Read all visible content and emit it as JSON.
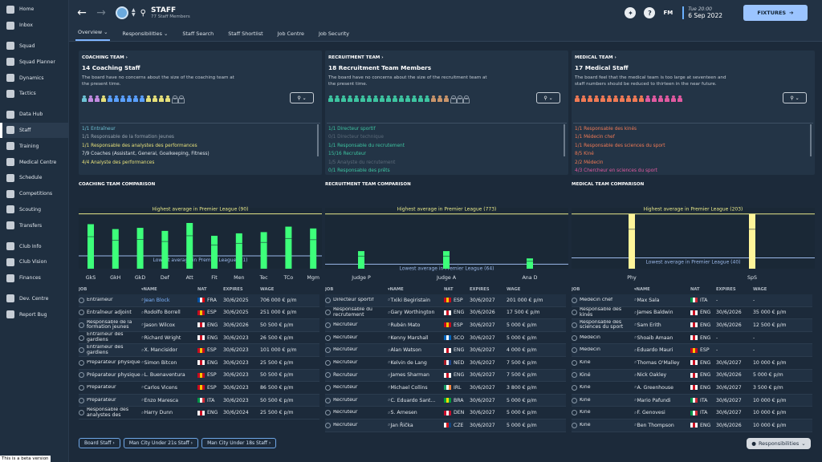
{
  "sidebar": {
    "items": [
      "Home",
      "Inbox",
      "Squad",
      "Squad Planner",
      "Dynamics",
      "Tactics",
      "Data Hub",
      "Staff",
      "Training",
      "Medical Centre",
      "Schedule",
      "Competitions",
      "Scouting",
      "Transfers",
      "Club Info",
      "Club Vision",
      "Finances",
      "Dev. Centre",
      "Report Bug"
    ],
    "icons": [
      "home-icon",
      "inbox-icon",
      "squad-icon",
      "squad-planner-icon",
      "dynamics-icon",
      "tactics-icon",
      "data-hub-icon",
      "staff-icon",
      "training-icon",
      "medical-icon",
      "schedule-icon",
      "competitions-icon",
      "scouting-icon",
      "transfers-icon",
      "club-info-icon",
      "club-vision-icon",
      "finances-icon",
      "dev-centre-icon",
      "report-bug-icon"
    ],
    "beta": "This is a beta version"
  },
  "header": {
    "title": "STAFF",
    "subtitle": "77 Staff Members",
    "fm": "FM",
    "day_time": "Tue 20:00",
    "date": "6 Sep 2022",
    "fixtures": "FIXTURES"
  },
  "tabs": [
    "Overview",
    "Responsibilities",
    "Staff Search",
    "Staff Shortlist",
    "Job Centre",
    "Job Security"
  ],
  "panels": [
    {
      "heading": "COACHING TEAM ›",
      "count": "14 Coaching Staff",
      "desc": "The board have no concerns about the size of the coaching team at the present time.",
      "figs": [
        "#6ec3d6",
        "#c28be0",
        "#c28be0",
        "#e6e07a",
        "#5aa0ff",
        "#5aa0ff",
        "#5aa0ff",
        "#5aa0ff",
        "#5aa0ff",
        "#5aa0ff",
        "#e6e07a",
        "#e6e07a",
        "#e6e07a",
        "#e6e07a",
        "empty",
        "empty"
      ],
      "lines": [
        [
          "#6ec3d6",
          "1/1 Entraîneur"
        ],
        [
          "#9aa6b2",
          "1/1 Responsable de la formation jeunes"
        ],
        [
          "#e6e07a",
          "1/1 Responsable des analystes des performances"
        ],
        [
          "#dbe2e9",
          "7/9 Coaches (Assistant, General, Goalkeeping, Fitness)"
        ],
        [
          "#e6e07a",
          "4/4 Analyste des performances"
        ]
      ]
    },
    {
      "heading": "RECRUITMENT TEAM ›",
      "count": "18 Recruitment Team Members",
      "desc": "The board have no concerns about the size of the recruitment team at the present time.",
      "figs": [
        "#3dc4a0",
        "#3dc4a0",
        "#3dc4a0",
        "#3dc4a0",
        "#3dc4a0",
        "#3dc4a0",
        "#3dc4a0",
        "#3dc4a0",
        "#3dc4a0",
        "#3dc4a0",
        "#3dc4a0",
        "#3dc4a0",
        "#3dc4a0",
        "#3dc4a0",
        "#3dc4a0",
        "#3dc4a0",
        "#c9946a",
        "#c9946a",
        "#c9946a",
        "empty",
        "empty",
        "empty"
      ],
      "lines": [
        [
          "#3dc4a0",
          "1/1 Directeur sportif"
        ],
        [
          "#5b6a79",
          "0/1 Directeur technique"
        ],
        [
          "#3dc4a0",
          "1/1 Responsable du recrutement"
        ],
        [
          "#3dc4a0",
          "15/16 Recruteur"
        ],
        [
          "#5b6a79",
          "1/5 Analyste du recrutement"
        ],
        [
          "#3dc4a0",
          "0/1 Responsable des prêts"
        ]
      ]
    },
    {
      "heading": "MEDICAL TEAM ›",
      "count": "17 Medical Staff",
      "desc": "The board feel that the medical team is too large at seventeen and staff numbers should be reduced to thirteen in the near future.",
      "figs": [
        "#f07a55",
        "#f07a55",
        "#f07a55",
        "#f07a55",
        "#f07a55",
        "#f07a55",
        "#f07a55",
        "#f07a55",
        "#f07a55",
        "#f07a55",
        "#f07a55",
        "#e05aa0",
        "#e05aa0",
        "#e05aa0",
        "#e05aa0",
        "#e05aa0",
        "#e05aa0"
      ],
      "lines": [
        [
          "#f07a55",
          "1/1 Responsable des kinés"
        ],
        [
          "#f07a55",
          "1/1 Médecin chef"
        ],
        [
          "#f07a55",
          "1/1 Responsable des sciences du sport"
        ],
        [
          "#f07a55",
          "8/5 Kiné"
        ],
        [
          "#f07a55",
          "2/2 Médecin"
        ],
        [
          "#e05aa0",
          "4/3 Chercheur en sciences du sport"
        ]
      ]
    }
  ],
  "sections": [
    "COACHING TEAM COMPARISON",
    "RECRUITMENT TEAM COMPARISON",
    "MEDICAL TEAM COMPARISON"
  ],
  "chart_data": [
    {
      "type": "bar",
      "categories": [
        "GkS",
        "GkH",
        "GkD",
        "Def",
        "Att",
        "Fit",
        "Men",
        "Tec",
        "TCo",
        "Mgm"
      ],
      "values": [
        73,
        65,
        67,
        62,
        75,
        54,
        58,
        60,
        69,
        66
      ],
      "highest_label": "Highest average in Premier League (90)",
      "highest": 90,
      "lowest_label": "Lowest average in Premier League (21)",
      "lowest": 21,
      "ylim": [
        0,
        100
      ]
    },
    {
      "type": "bar",
      "categories": [
        "Judge P",
        "Judge A",
        "Ana D"
      ],
      "values": [
        248,
        248,
        145
      ],
      "highest_label": "Highest average in Premier League (773)",
      "highest": 773,
      "lowest_label": "Lowest average in Premier League (64)",
      "lowest": 64,
      "ylim": [
        0,
        860
      ]
    },
    {
      "type": "bar",
      "categories": [
        "Phy",
        "SpS"
      ],
      "values": [
        203,
        203
      ],
      "highest_label": "Highest average in Premier League (203)",
      "highest": 203,
      "lowest_label": "Lowest average in Premier League (40)",
      "lowest": 40,
      "ylim": [
        0,
        226
      ]
    }
  ],
  "headers": [
    "JOB",
    "▾NAME",
    "NAT",
    "EXPIRES",
    "WAGE"
  ],
  "tables": [
    [
      [
        "Entraîneur",
        "Jean Block",
        "FRA",
        "30/6/2025",
        "706 000 € p/m"
      ],
      [
        "Entraîneur adjoint",
        "Rodolfo Borrell",
        "ESP",
        "30/6/2025",
        "251 000 € p/m"
      ],
      [
        "Responsable de la formation jeunes",
        "Jason Wilcox",
        "ENG",
        "30/6/2026",
        "50 500 € p/m"
      ],
      [
        "Entraîneur des gardiens",
        "Richard Wright",
        "ENG",
        "30/6/2023",
        "26 500 € p/m"
      ],
      [
        "Entraîneur des gardiens",
        "X. Mancisidor",
        "ESP",
        "30/6/2023",
        "101 000 € p/m"
      ],
      [
        "Préparateur physique",
        "Simon Bitcon",
        "ENG",
        "30/6/2023",
        "25 500 € p/m"
      ],
      [
        "Préparateur physique",
        "L. Buenaventura",
        "ESP",
        "30/6/2023",
        "50 500 € p/m"
      ],
      [
        "Préparateur",
        "Carlos Vicens",
        "ESP",
        "30/6/2023",
        "86 500 € p/m"
      ],
      [
        "Préparateur",
        "Enzo Maresca",
        "ITA",
        "30/6/2023",
        "50 500 € p/m"
      ],
      [
        "Responsable des analystes des",
        "Harry Dunn",
        "ENG",
        "30/6/2024",
        "25 500 € p/m"
      ]
    ],
    [
      [
        "Directeur sportif",
        "Txiki Begiristain",
        "ESP",
        "30/6/2027",
        "201 000 € p/m"
      ],
      [
        "Responsable du recrutement",
        "Gary Worthington",
        "ENG",
        "30/6/2026",
        "17 500 € p/m"
      ],
      [
        "Recruteur",
        "Rubén Mato",
        "ESP",
        "30/6/2027",
        "5 000 € p/m"
      ],
      [
        "Recruteur",
        "Kenny Marshall",
        "SCO",
        "30/6/2027",
        "5 000 € p/m"
      ],
      [
        "Recruteur",
        "Alan Watson",
        "ENG",
        "30/6/2027",
        "4 000 € p/m"
      ],
      [
        "Recruteur",
        "Kelvin de Lang",
        "NED",
        "30/6/2027",
        "7 500 € p/m"
      ],
      [
        "Recruteur",
        "James Sharman",
        "ENG",
        "30/6/2027",
        "7 500 € p/m"
      ],
      [
        "Recruteur",
        "Michael Collins",
        "IRL",
        "30/6/2027",
        "3 800 € p/m"
      ],
      [
        "Recruteur",
        "C. Eduardo Sant...",
        "BRA",
        "30/6/2027",
        "5 000 € p/m"
      ],
      [
        "Recruteur",
        "S. Arnesen",
        "DEN",
        "30/6/2027",
        "5 000 € p/m"
      ],
      [
        "Recruteur",
        "Jan Řička",
        "CZE",
        "30/6/2027",
        "5 000 € p/m"
      ]
    ],
    [
      [
        "Médecin chef",
        "Max Sala",
        "ITA",
        "-",
        "-"
      ],
      [
        "Responsable des kinés",
        "James Baldwin",
        "ENG",
        "30/6/2026",
        "35 000 € p/m"
      ],
      [
        "Responsable des sciences du sport",
        "Sam Erith",
        "ENG",
        "30/6/2026",
        "12 500 € p/m"
      ],
      [
        "Médecin",
        "Shoaib Amaan",
        "ENG",
        "-",
        "-"
      ],
      [
        "Médecin",
        "Eduardo Mauri",
        "ESP",
        "-",
        "-"
      ],
      [
        "Kiné",
        "Thomas O'Malley",
        "ENG",
        "30/6/2027",
        "10 000 € p/m"
      ],
      [
        "Kiné",
        "Nick Oakley",
        "ENG",
        "30/6/2026",
        "5 000 € p/m"
      ],
      [
        "Kiné",
        "A. Greenhouse",
        "ENG",
        "30/6/2027",
        "3 500 € p/m"
      ],
      [
        "Kiné",
        "Mario Pafundi",
        "ITA",
        "30/6/2027",
        "10 000 € p/m"
      ],
      [
        "Kiné",
        "F. Genovesi",
        "ITA",
        "30/6/2027",
        "10 000 € p/m"
      ],
      [
        "Kiné",
        "Ben Thompson",
        "ENG",
        "30/6/2026",
        "10 000 € p/m"
      ]
    ]
  ],
  "bottom": [
    "Board Staff ›",
    "Man City Under 21s Staff ›",
    "Man City Under 18s Staff ›"
  ],
  "responsibilities": "Responsibilities"
}
